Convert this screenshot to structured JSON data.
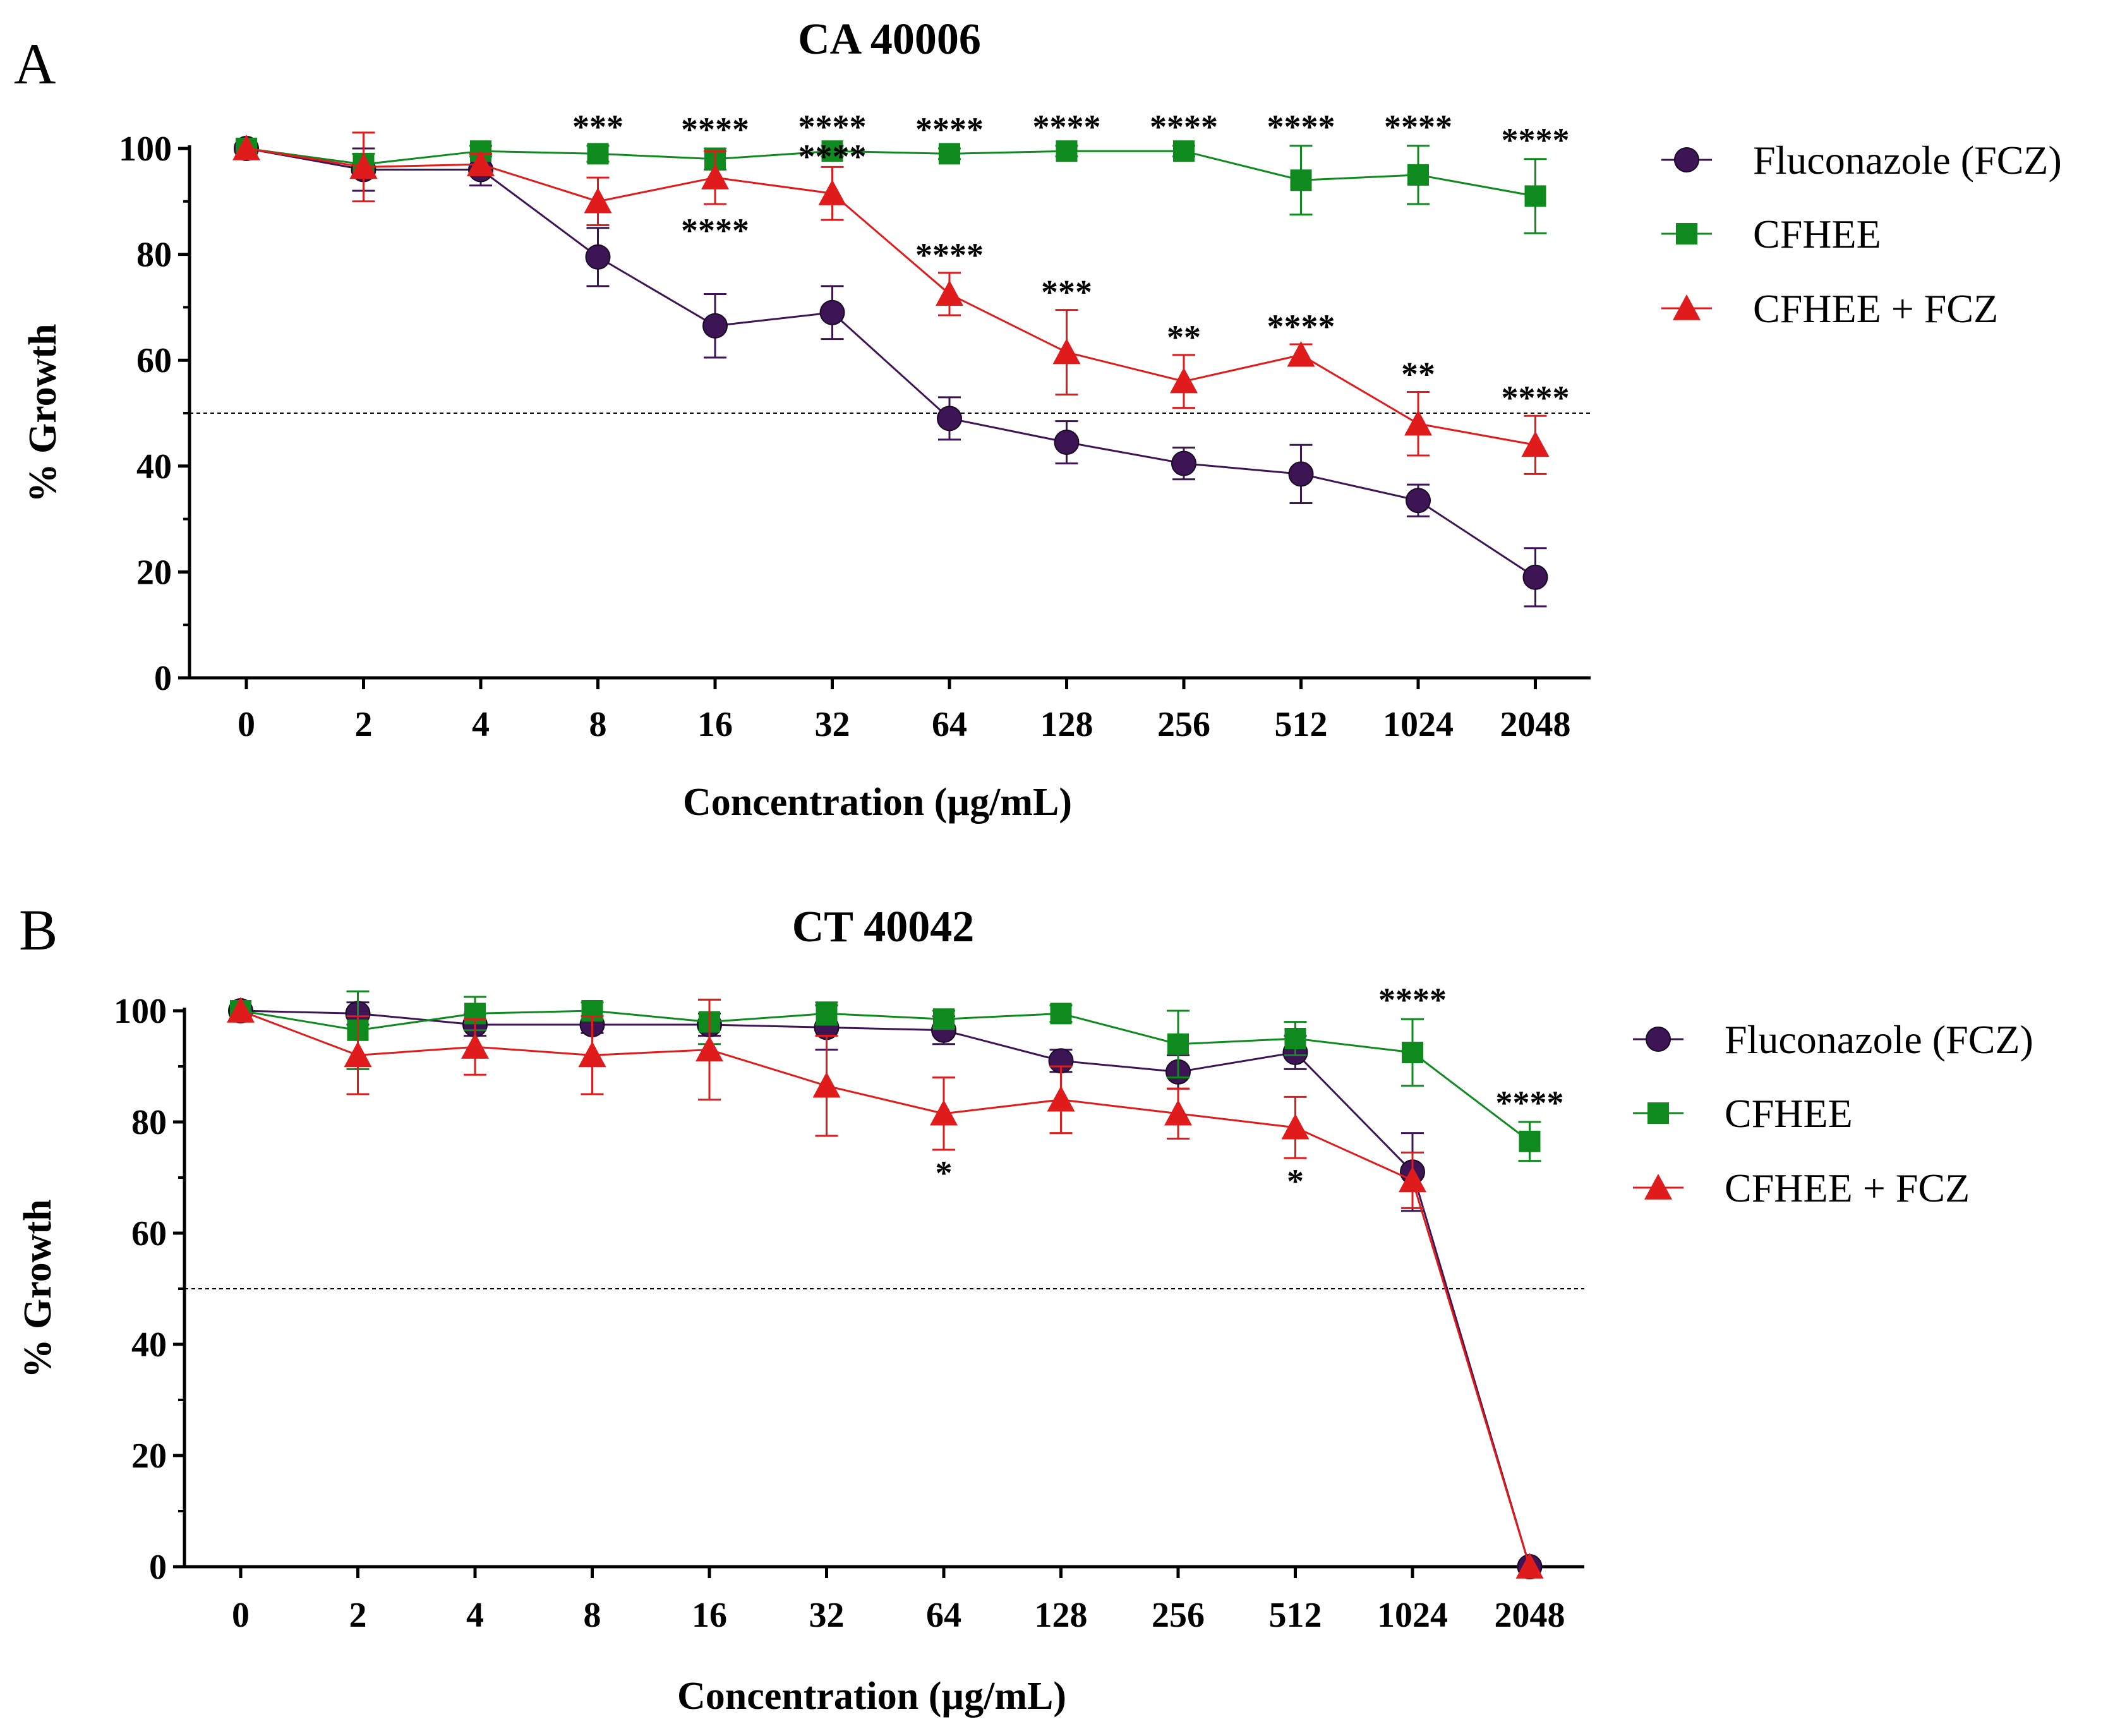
{
  "chart_data": [
    {
      "type": "line",
      "panel": "A",
      "title": "CA 40006",
      "xlabel": "Concentration (µg/mL)",
      "ylabel": "% Growth",
      "categories": [
        "0",
        "2",
        "4",
        "8",
        "16",
        "32",
        "64",
        "128",
        "256",
        "512",
        "1024",
        "2048"
      ],
      "ylim": [
        0,
        100
      ],
      "yticks": [
        "0",
        "20",
        "40",
        "60",
        "80",
        "100"
      ],
      "reference_line": 50,
      "legend_position": "right",
      "series": [
        {
          "name": "Fluconazole (FCZ)",
          "color": "#3d1454",
          "marker": "circle",
          "values": [
            100,
            96,
            96,
            79.5,
            66.5,
            69,
            49,
            44.5,
            40.5,
            38.5,
            33.5,
            19
          ],
          "errors": [
            0,
            4,
            3,
            5.5,
            6,
            5,
            4,
            4,
            3,
            5.5,
            3,
            5.5
          ]
        },
        {
          "name": "CFHEE",
          "color": "#0f8a1e",
          "marker": "square",
          "values": [
            100,
            97,
            99.5,
            99,
            98,
            99.5,
            99,
            99.5,
            99.5,
            94,
            95,
            91
          ],
          "errors": [
            0,
            2,
            1,
            1.5,
            2,
            1,
            1,
            1,
            1,
            6.5,
            5.5,
            7
          ]
        },
        {
          "name": "CFHEE + FCZ",
          "color": "#e01b1b",
          "marker": "triangle",
          "values": [
            100,
            96.5,
            97,
            90,
            94.5,
            91.5,
            72.5,
            61.5,
            56,
            61,
            48,
            44
          ],
          "errors": [
            0,
            6.5,
            2,
            4.5,
            5,
            5,
            4,
            8,
            5,
            2,
            6,
            5.5
          ]
        }
      ],
      "significance": [
        {
          "index": 3,
          "label": "***",
          "pos": "above"
        },
        {
          "index": 4,
          "label": "****",
          "pos": "above"
        },
        {
          "index": 4,
          "label": "****",
          "pos": "below"
        },
        {
          "index": 5,
          "label": "****",
          "pos": "above"
        },
        {
          "index": 5,
          "label": "****",
          "pos": "mid"
        },
        {
          "index": 6,
          "label": "****",
          "pos": "above"
        },
        {
          "index": 6,
          "label": "****",
          "pos": "red"
        },
        {
          "index": 7,
          "label": "****",
          "pos": "above"
        },
        {
          "index": 7,
          "label": "***",
          "pos": "red"
        },
        {
          "index": 8,
          "label": "****",
          "pos": "above"
        },
        {
          "index": 8,
          "label": "**",
          "pos": "red"
        },
        {
          "index": 9,
          "label": "****",
          "pos": "above"
        },
        {
          "index": 9,
          "label": "****",
          "pos": "red"
        },
        {
          "index": 10,
          "label": "****",
          "pos": "above"
        },
        {
          "index": 10,
          "label": "**",
          "pos": "red"
        },
        {
          "index": 11,
          "label": "****",
          "pos": "above"
        },
        {
          "index": 11,
          "label": "****",
          "pos": "red"
        }
      ]
    },
    {
      "type": "line",
      "panel": "B",
      "title": "CT 40042",
      "xlabel": "Concentration (µg/mL)",
      "ylabel": "% Growth",
      "categories": [
        "0",
        "2",
        "4",
        "8",
        "16",
        "32",
        "64",
        "128",
        "256",
        "512",
        "1024",
        "2048"
      ],
      "ylim": [
        0,
        100
      ],
      "yticks": [
        "0",
        "20",
        "40",
        "60",
        "80",
        "100"
      ],
      "reference_line": 50,
      "legend_position": "right",
      "series": [
        {
          "name": "Fluconazole (FCZ)",
          "color": "#3d1454",
          "marker": "circle",
          "values": [
            100,
            99.5,
            97.5,
            97.5,
            97.5,
            97,
            96.5,
            91,
            89,
            92.5,
            71,
            0
          ],
          "errors": [
            0,
            2,
            2,
            1.5,
            2,
            4,
            2.5,
            2,
            3,
            3,
            7,
            0
          ]
        },
        {
          "name": "CFHEE",
          "color": "#0f8a1e",
          "marker": "square",
          "values": [
            100,
            96.5,
            99.5,
            100,
            98,
            99.5,
            98.5,
            99.5,
            94,
            95,
            92.5,
            76.5
          ],
          "errors": [
            0,
            7,
            3,
            1.5,
            4,
            2,
            1.5,
            1.5,
            6,
            3,
            6,
            3.5
          ]
        },
        {
          "name": "CFHEE + FCZ",
          "color": "#e01b1b",
          "marker": "triangle",
          "values": [
            100,
            92,
            93.5,
            92,
            93,
            86.5,
            81.5,
            84,
            81.5,
            79,
            69.5,
            0
          ],
          "errors": [
            0,
            7,
            5,
            7,
            9,
            9,
            6.5,
            6,
            4.5,
            5.5,
            5,
            0
          ]
        }
      ],
      "significance": [
        {
          "index": 6,
          "label": "*",
          "pos": "below"
        },
        {
          "index": 9,
          "label": "*",
          "pos": "below"
        },
        {
          "index": 10,
          "label": "****",
          "pos": "above"
        },
        {
          "index": 11,
          "label": "****",
          "pos": "above"
        }
      ]
    }
  ]
}
